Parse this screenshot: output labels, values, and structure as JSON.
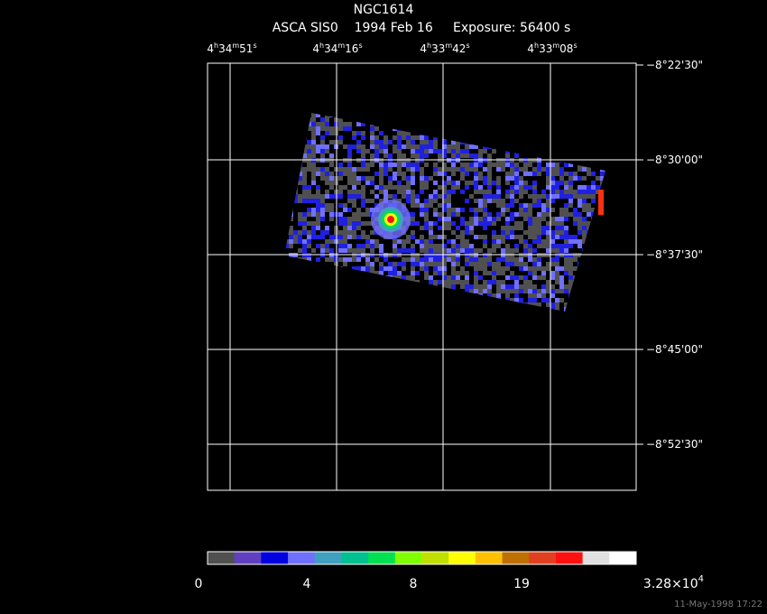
{
  "header": {
    "title": "NGC1614",
    "subtitle": "ASCA SIS0    1994 Feb 16     Exposure: 56400 s"
  },
  "ra_labels": [
    [
      "4",
      "h",
      "34",
      "m",
      "51",
      "s"
    ],
    [
      "4",
      "h",
      "34",
      "m",
      "16",
      "s"
    ],
    [
      "4",
      "h",
      "33",
      "m",
      "42",
      "s"
    ],
    [
      "4",
      "h",
      "33",
      "m",
      "08",
      "s"
    ]
  ],
  "dec_labels": [
    "−8°22'30\"",
    "−8°30'00\"",
    "−8°37'30\"",
    "−8°45'00\"",
    "−8°52'30\""
  ],
  "colorbar_labels": [
    "0",
    "4",
    "8",
    "19",
    [
      "3.28×10",
      "4"
    ]
  ],
  "timestamp": "11-May-1998 17:22"
}
